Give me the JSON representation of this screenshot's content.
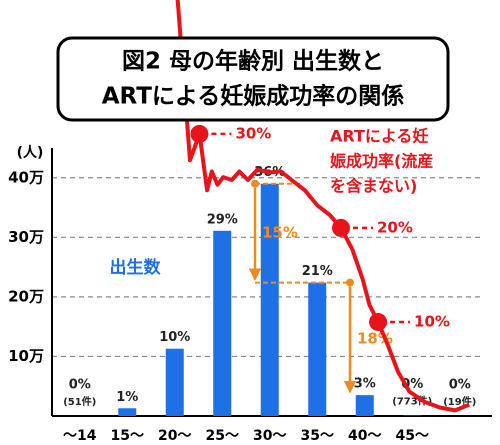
{
  "chart_data": {
    "type": "bar",
    "title": [
      "図2 母の年齢別 出生数と",
      "ARTによる妊娠成功率の関係"
    ],
    "ylabel": "(人)",
    "categories": [
      "～14",
      "15～",
      "20～",
      "25～",
      "30～",
      "35～",
      "40～",
      "45～",
      null
    ],
    "ylim": [
      0,
      45
    ],
    "yticks": [
      {
        "value": 10,
        "label": "10万"
      },
      {
        "value": 20,
        "label": "20万"
      },
      {
        "value": 30,
        "label": "30万"
      },
      {
        "value": 40,
        "label": "40万"
      }
    ],
    "grid": true,
    "series": [
      {
        "name": "出生数",
        "color": "#1f6fe5",
        "values": [
          0.0051,
          1.3,
          11.3,
          31.1,
          39.0,
          22.4,
          3.5,
          0.0773,
          0.0019
        ],
        "share_labels": [
          "0%",
          "1%",
          "10%",
          "29%",
          "36%",
          "21%",
          "3%",
          "0%",
          "0%"
        ],
        "count_labels": [
          "(51件)",
          null,
          null,
          null,
          null,
          null,
          null,
          "(773件)",
          "(19件)"
        ]
      }
    ],
    "xlim": [
      9.2,
      54.2
    ],
    "y2lim": [
      0,
      28.5
    ],
    "line": {
      "type": "line",
      "axis": "y2",
      "color": "#e8141b",
      "label_lines": [
        "ARTによる妊",
        "娠成功率(流産",
        "を含まない)"
      ],
      "x": [
        22.0,
        23.3,
        24.3,
        25.1,
        25.6,
        26.2,
        26.8,
        27.7,
        28.5,
        29.4,
        30.4,
        31.7,
        32.9,
        34.0,
        35.4,
        36.7,
        38.0,
        39.2,
        40.4,
        41.5,
        42.2,
        43.1,
        44.1,
        45.2,
        46.4,
        48.0,
        49.6,
        51.2,
        52.7
      ],
      "values": [
        44.3,
        27.2,
        30,
        24.0,
        26.0,
        24.6,
        25.4,
        25.1,
        26.0,
        25.1,
        26.2,
        25.9,
        26.0,
        25.1,
        24.0,
        22.4,
        21.4,
        20,
        17.7,
        14.5,
        11.8,
        10,
        7.6,
        4.7,
        2.6,
        1.5,
        0.9,
        0.6,
        1.2
      ]
    },
    "markers": [
      {
        "x": 24.3,
        "value": 30,
        "label": "30%"
      },
      {
        "x": 39.2,
        "value": 20,
        "label": "20%"
      },
      {
        "x": 43.1,
        "value": 10,
        "label": "10%"
      }
    ],
    "arrows": [
      {
        "label": "15%",
        "color": "#f08a1e"
      },
      {
        "label": "18%",
        "color": "#f08a1e"
      }
    ]
  }
}
